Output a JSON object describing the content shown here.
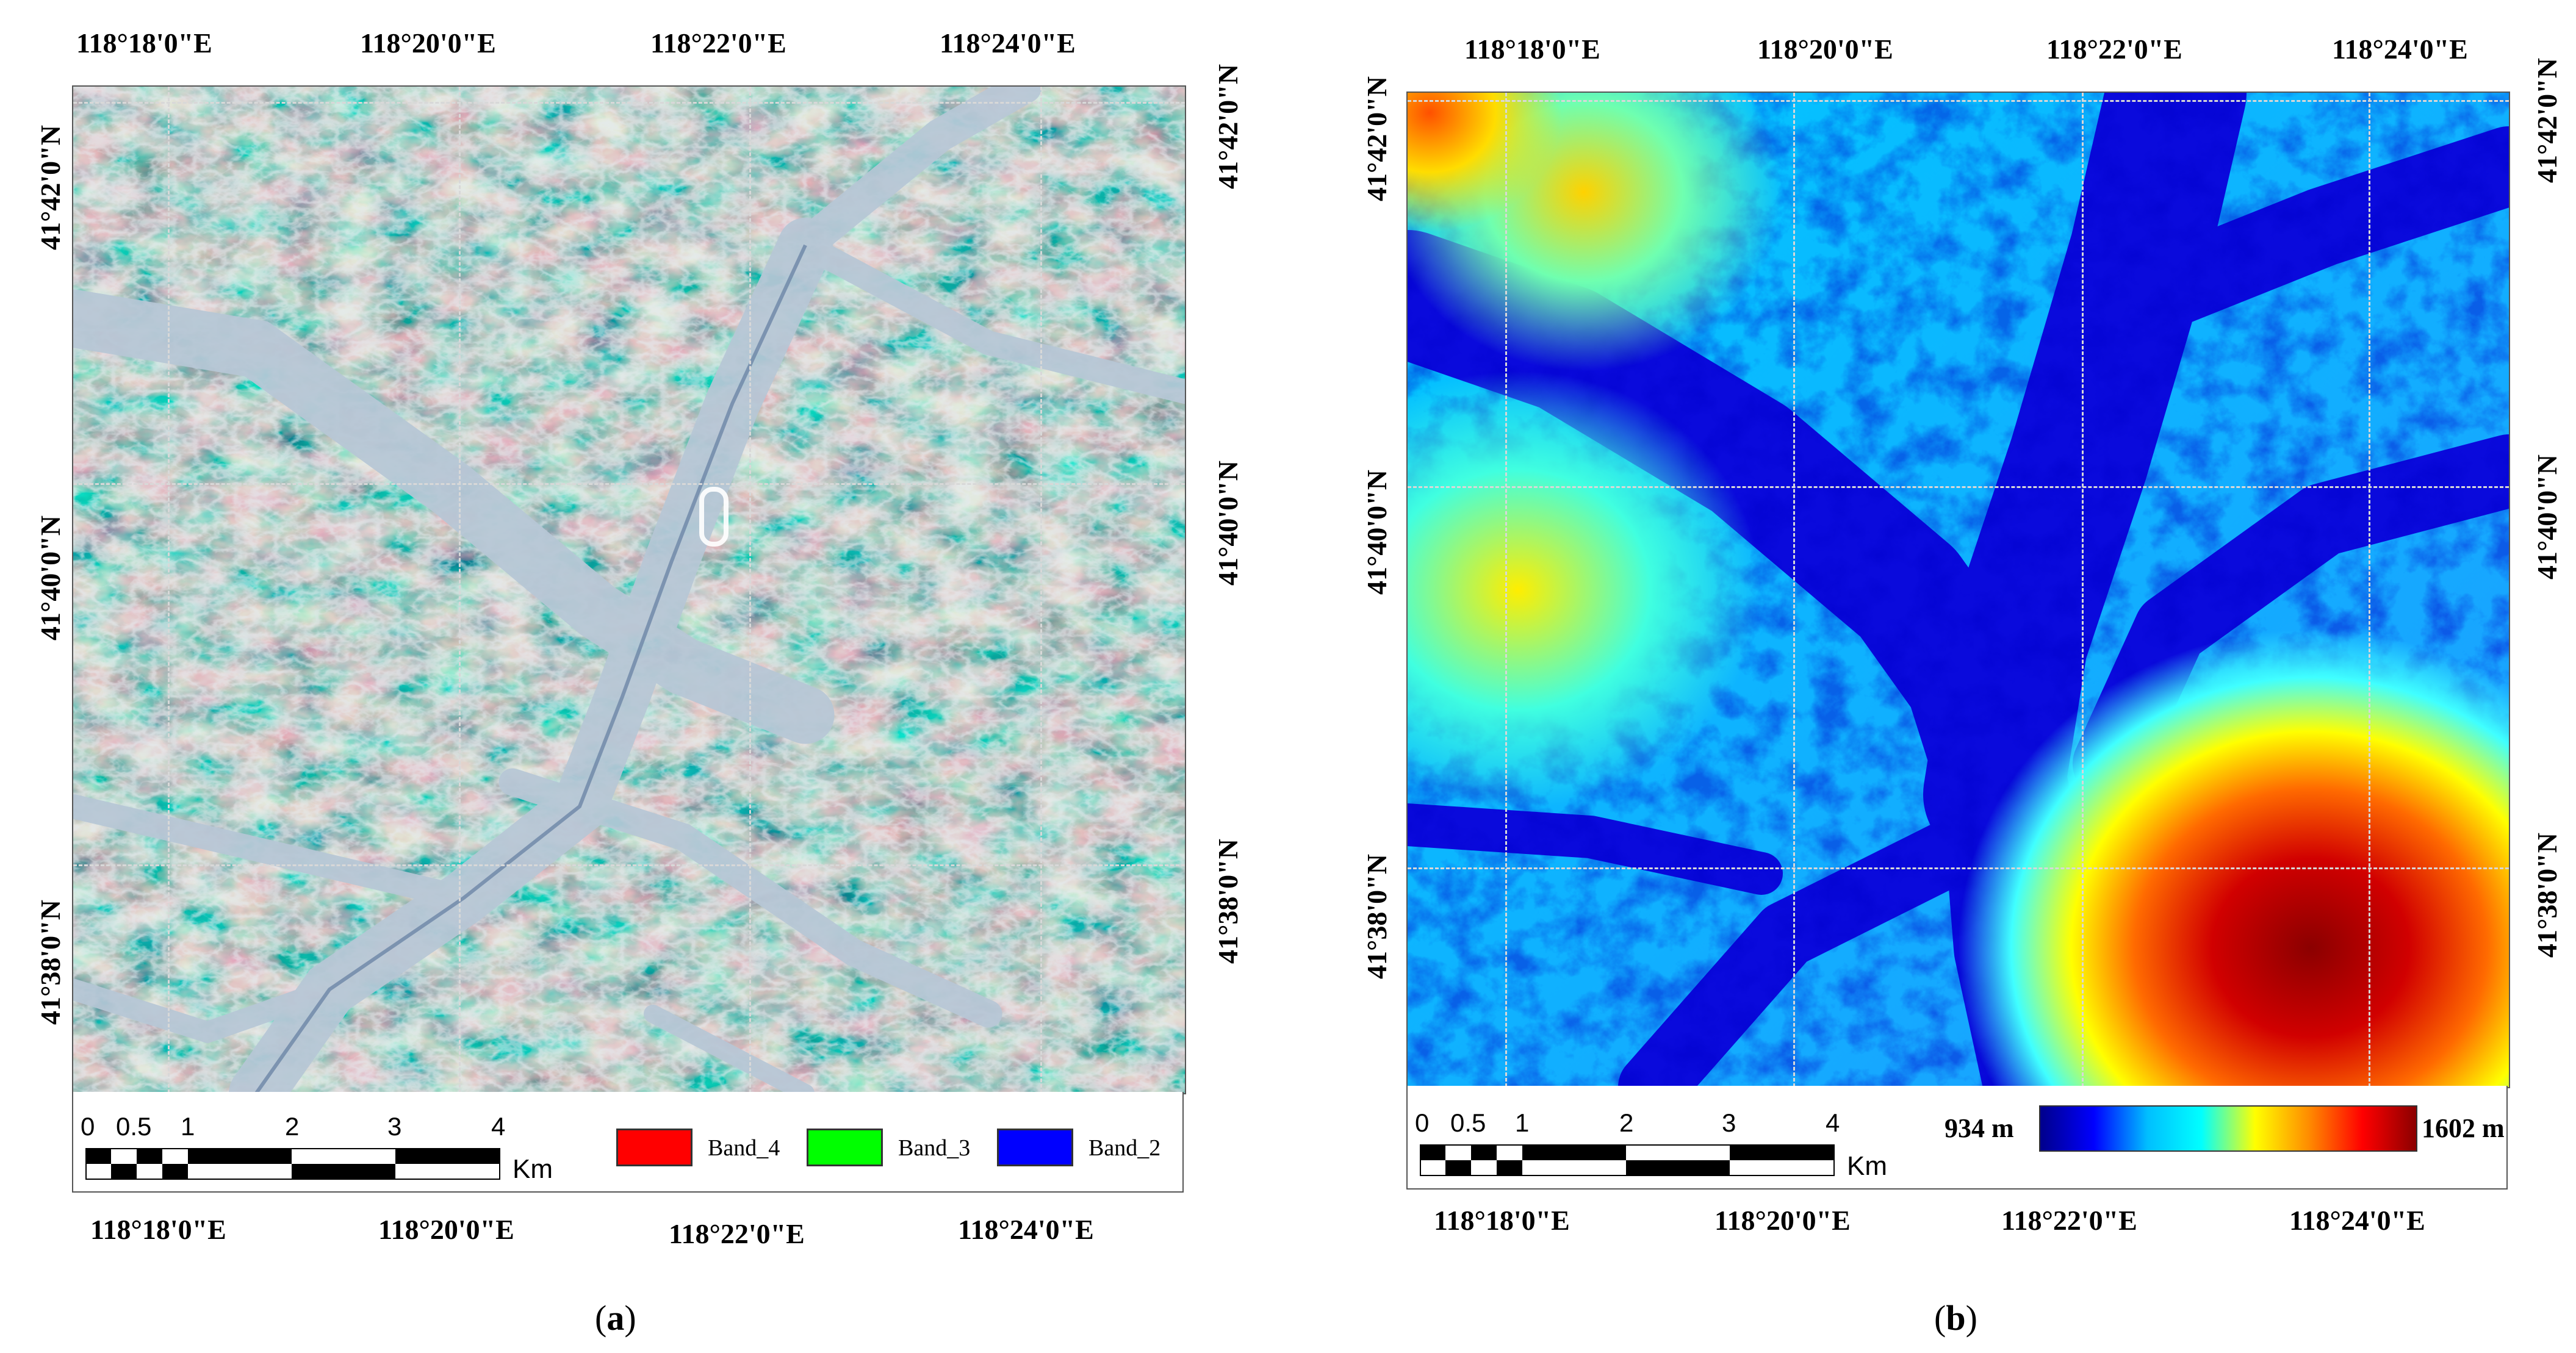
{
  "panel_a": {
    "top_lon_labels": [
      "118°18'0\"E",
      "118°20'0\"E",
      "118°22'0\"E",
      "118°24'0\"E"
    ],
    "bottom_lon_labels": [
      "118°18'0\"E",
      "118°20'0\"E",
      "118°22'0\"E",
      "118°24'0\"E"
    ],
    "left_lat_labels": [
      "41°42'0\"N",
      "41°40'0\"N",
      "41°38'0\"N"
    ],
    "right_lat_labels": [
      "41°42'0\"N",
      "41°40'0\"N",
      "41°38'0\"N"
    ],
    "scale_ticks": [
      "0",
      "0.5",
      "1",
      "2",
      "3",
      "4"
    ],
    "scale_unit": "Km",
    "legend": [
      {
        "label": "Band_4",
        "color": "#ff0000"
      },
      {
        "label": "Band_3",
        "color": "#00ff00"
      },
      {
        "label": "Band_2",
        "color": "#0000ff"
      }
    ],
    "caption_letter": "a"
  },
  "panel_b": {
    "top_lon_labels": [
      "118°18'0\"E",
      "118°20'0\"E",
      "118°22'0\"E",
      "118°24'0\"E"
    ],
    "bottom_lon_labels": [
      "118°18'0\"E",
      "118°20'0\"E",
      "118°22'0\"E",
      "118°24'0\"E"
    ],
    "left_lat_labels": [
      "41°42'0\"N",
      "41°40'0\"N",
      "41°38'0\"N"
    ],
    "right_lat_labels": [
      "41°42'0\"N",
      "41°40'0\"N",
      "41°38'0\"N"
    ],
    "scale_ticks": [
      "0",
      "0.5",
      "1",
      "2",
      "3",
      "4"
    ],
    "scale_unit": "Km",
    "colorbar_min": "934 m",
    "colorbar_max": "1602 m",
    "colorbar_colors": [
      "#00008b",
      "#0000ff",
      "#00bfff",
      "#00ffff",
      "#ffff00",
      "#ff8c00",
      "#ff0000",
      "#8b0000"
    ],
    "caption_letter": "b"
  }
}
